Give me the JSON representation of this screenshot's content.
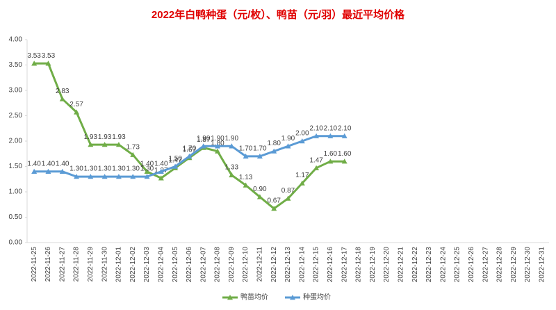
{
  "chart_data": {
    "type": "line",
    "title": "2022年白鸭种蛋（元/枚）、鸭苗（元/羽）最近平均价格",
    "categories": [
      "2022-11-25",
      "2022-11-26",
      "2022-11-27",
      "2022-11-28",
      "2022-11-29",
      "2022-11-30",
      "2022-12-01",
      "2022-12-02",
      "2022-12-03",
      "2022-12-04",
      "2022-12-05",
      "2022-12-06",
      "2022-12-07",
      "2022-12-08",
      "2022-12-09",
      "2022-12-10",
      "2022-12-11",
      "2022-12-12",
      "2022-12-13",
      "2022-12-14",
      "2022-12-15",
      "2022-12-16",
      "2022-12-17",
      "2022-12-18",
      "2022-12-19",
      "2022-12-20",
      "2022-12-21",
      "2022-12-22",
      "2022-12-23",
      "2022-12-24",
      "2022-12-25",
      "2022-12-26",
      "2022-12-27",
      "2022-12-28",
      "2022-12-29",
      "2022-12-30",
      "2022-12-31"
    ],
    "series": [
      {
        "name": "鸭苗均价",
        "color": "#70ad47",
        "values": [
          3.53,
          3.53,
          2.83,
          2.57,
          1.93,
          1.93,
          1.93,
          1.73,
          1.4,
          1.27,
          1.47,
          1.67,
          1.87,
          1.8,
          1.33,
          1.13,
          0.9,
          0.67,
          0.87,
          1.17,
          1.47,
          1.6,
          1.6,
          null,
          null,
          null,
          null,
          null,
          null,
          null,
          null,
          null,
          null,
          null,
          null,
          null,
          null
        ],
        "value_labels": [
          "3.53",
          "3.53",
          "2.83",
          "2.57",
          "1.93",
          "1.93",
          "1.93",
          "1.73",
          "1.40",
          "1.27",
          "1.47",
          "1.67",
          "1.87",
          "1.80",
          "1.33",
          "1.13",
          "0.90",
          "0.67",
          "0.87",
          "1.17",
          "1.47",
          "1.60",
          "1.60",
          null,
          null,
          null,
          null,
          null,
          null,
          null,
          null,
          null,
          null,
          null,
          null,
          null,
          null
        ]
      },
      {
        "name": "种蛋均价",
        "color": "#5b9bd5",
        "values": [
          1.4,
          1.4,
          1.4,
          1.3,
          1.3,
          1.3,
          1.3,
          1.3,
          1.3,
          1.4,
          1.5,
          1.7,
          1.9,
          1.9,
          1.9,
          1.7,
          1.7,
          1.8,
          1.9,
          2.0,
          2.1,
          2.1,
          2.1,
          null,
          null,
          null,
          null,
          null,
          null,
          null,
          null,
          null,
          null,
          null,
          null,
          null,
          null
        ],
        "value_labels": [
          "1.40",
          "1.40",
          "1.40",
          "1.30",
          "1.30",
          "1.30",
          "1.30",
          "1.30",
          "1.30",
          "1.40",
          "1.50",
          "1.70",
          "1.90",
          "1.90",
          "1.90",
          "1.70",
          "1.70",
          "1.80",
          "1.90",
          "2.00",
          "2.10",
          "2.10",
          "2.10",
          null,
          null,
          null,
          null,
          null,
          null,
          null,
          null,
          null,
          null,
          null,
          null,
          null,
          null
        ]
      }
    ],
    "ylim": [
      0,
      4
    ],
    "yticks": [
      {
        "value": 0,
        "label": "0.00"
      },
      {
        "value": 0.5,
        "label": "0.50"
      },
      {
        "value": 1,
        "label": "1.00"
      },
      {
        "value": 1.5,
        "label": "1.50"
      },
      {
        "value": 2,
        "label": "2.00"
      },
      {
        "value": 2.5,
        "label": "2.50"
      },
      {
        "value": 3,
        "label": "3.00"
      },
      {
        "value": 3.5,
        "label": "3.50"
      },
      {
        "value": 4,
        "label": "4.00"
      }
    ],
    "grid": false,
    "legend": "bottom"
  }
}
